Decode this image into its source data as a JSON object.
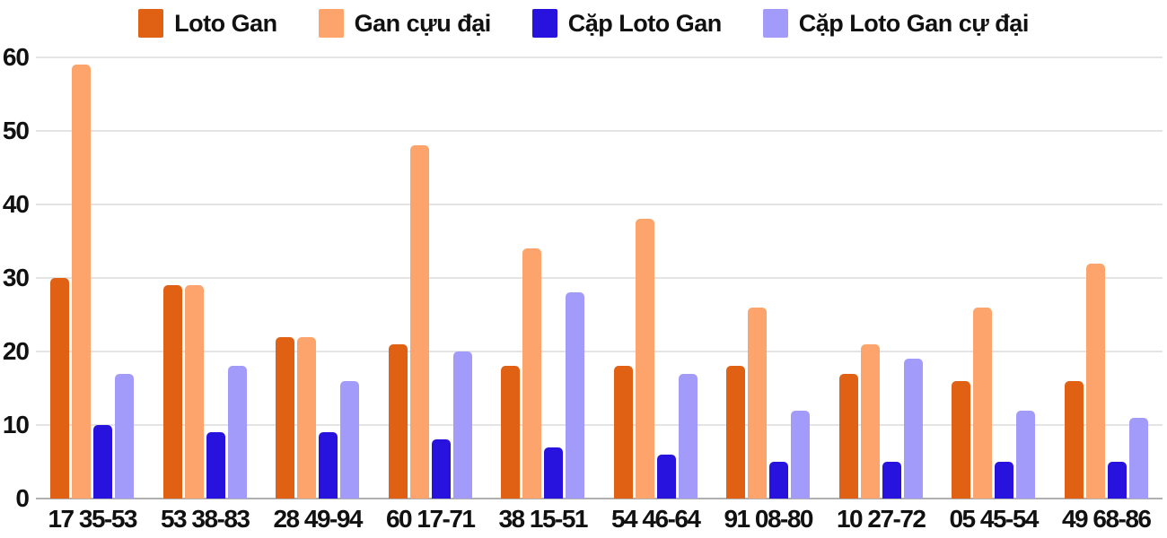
{
  "chart_data": {
    "type": "bar",
    "categories": [
      "17 35-53",
      "53 38-83",
      "28 49-94",
      "60 17-71",
      "38 15-51",
      "54 46-64",
      "91 08-80",
      "10 27-72",
      "05 45-54",
      "49 68-86"
    ],
    "series": [
      {
        "name": "Loto Gan",
        "color": "#e06114",
        "values": [
          30,
          29,
          22,
          21,
          18,
          18,
          18,
          17,
          16,
          16
        ]
      },
      {
        "name": "Gan cựu đại",
        "color": "#fca46c",
        "values": [
          59,
          29,
          22,
          48,
          34,
          38,
          26,
          21,
          26,
          32
        ]
      },
      {
        "name": "Cặp Loto Gan",
        "color": "#2712de",
        "values": [
          10,
          9,
          9,
          8,
          7,
          6,
          5,
          5,
          5,
          5
        ]
      },
      {
        "name": "Cặp Loto Gan cự đại",
        "color": "#a39bfa",
        "values": [
          17,
          18,
          16,
          20,
          28,
          17,
          12,
          19,
          12,
          11
        ]
      }
    ],
    "ylim": [
      0,
      60
    ],
    "yticks": [
      0,
      10,
      20,
      30,
      40,
      50,
      60
    ],
    "grid": "horizontal",
    "legend_position": "top",
    "styles": {
      "grid_color": "#e4e4e4",
      "axis_line_color": "#b0b0b0",
      "text_color": "#111111",
      "background": "#ffffff"
    }
  }
}
